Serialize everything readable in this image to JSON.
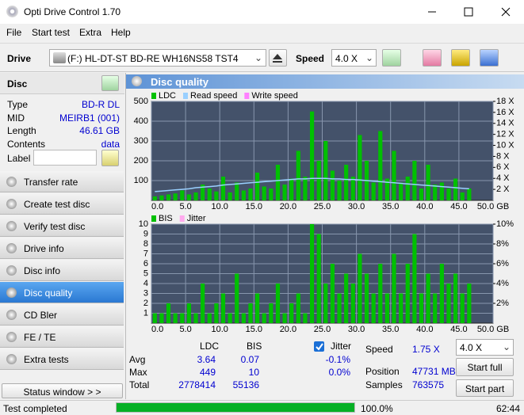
{
  "window": {
    "title": "Opti Drive Control 1.70"
  },
  "menu": [
    "File",
    "Start test",
    "Extra",
    "Help"
  ],
  "toolbar": {
    "drive_label": "Drive",
    "drive": "(F:)  HL-DT-ST BD-RE  WH16NS58 TST4",
    "speed_label": "Speed",
    "speed": "4.0 X"
  },
  "disc": {
    "title": "Disc",
    "rows": [
      [
        "Type",
        "BD-R DL"
      ],
      [
        "MID",
        "MEIRB1 (001)"
      ],
      [
        "Length",
        "46.61 GB"
      ],
      [
        "Contents",
        "data"
      ]
    ],
    "label": "Label"
  },
  "nav": [
    "Transfer rate",
    "Create test disc",
    "Verify test disc",
    "Drive info",
    "Disc info",
    "Disc quality",
    "CD Bler",
    "FE / TE",
    "Extra tests"
  ],
  "status_window": "Status window > >",
  "panel_title": "Disc quality",
  "chart_data": [
    {
      "type": "bar",
      "x": [
        0.5,
        1.5,
        2.5,
        3.5,
        4.5,
        5.5,
        6.5,
        7.5,
        8.5,
        9.5,
        10.5,
        11.5,
        12.5,
        13.5,
        14.5,
        15.5,
        16.5,
        17.5,
        18.5,
        19.5,
        20.5,
        21.5,
        22.5,
        23.5,
        24.5,
        25.5,
        26.5,
        27.5,
        28.5,
        29.5,
        30.5,
        31.5,
        32.5,
        33.5,
        34.5,
        35.5,
        36.5,
        37.5,
        38.5,
        39.5,
        40.5,
        41.5,
        42.5,
        43.5,
        44.5,
        45.5,
        46.5
      ],
      "series": [
        {
          "name": "LDC",
          "color": "#00c000",
          "values": [
            20,
            25,
            30,
            35,
            50,
            30,
            40,
            80,
            60,
            45,
            120,
            40,
            90,
            50,
            60,
            140,
            70,
            60,
            180,
            80,
            110,
            250,
            120,
            449,
            200,
            300,
            150,
            100,
            180,
            120,
            330,
            200,
            90,
            350,
            110,
            250,
            90,
            120,
            200,
            60,
            180,
            80,
            90,
            60,
            110,
            40,
            60
          ]
        },
        {
          "name": "Read speed",
          "color": "#9ad0ff",
          "axis": "y2",
          "values": [
            1.6,
            1.7,
            1.8,
            1.9,
            2.0,
            2.1,
            2.3,
            2.4,
            2.5,
            2.6,
            2.8,
            2.9,
            3.0,
            3.1,
            3.2,
            3.3,
            3.4,
            3.5,
            3.6,
            3.7,
            3.8,
            3.9,
            3.9,
            4.0,
            4.0,
            4.0,
            3.9,
            3.9,
            3.8,
            3.8,
            3.7,
            3.6,
            3.5,
            3.4,
            3.3,
            3.2,
            3.1,
            3.0,
            2.9,
            2.8,
            2.7,
            2.6,
            2.5,
            2.4,
            2.3,
            2.2,
            2.1
          ]
        },
        {
          "name": "Write speed",
          "color": "#ff80ff",
          "axis": "y2",
          "values": [
            null,
            null,
            null,
            null,
            null,
            null,
            null,
            null,
            null,
            null,
            null,
            null,
            null,
            null,
            null,
            null,
            null,
            null,
            null,
            null,
            null,
            null,
            null,
            null,
            null,
            null,
            null,
            null,
            null,
            null,
            null,
            null,
            null,
            null,
            null,
            null,
            null,
            null,
            null,
            null,
            null,
            null,
            null,
            null,
            null,
            null,
            null
          ]
        }
      ],
      "xlim": [
        0,
        50
      ],
      "xticks": [
        {
          "value": 0,
          "label": "0.0"
        },
        {
          "value": 5,
          "label": "5.0"
        },
        {
          "value": 10,
          "label": "10.0"
        },
        {
          "value": 15,
          "label": "15.0"
        },
        {
          "value": 20,
          "label": "20.0"
        },
        {
          "value": 25,
          "label": "25.0"
        },
        {
          "value": 30,
          "label": "30.0"
        },
        {
          "value": 35,
          "label": "35.0"
        },
        {
          "value": 40,
          "label": "40.0"
        },
        {
          "value": 45,
          "label": "45.0"
        },
        {
          "value": 50,
          "label": "50.0 GB"
        }
      ],
      "ylim": [
        0,
        500
      ],
      "yticks": [
        100,
        200,
        300,
        400,
        500
      ],
      "y2lim": [
        0,
        18
      ],
      "y2ticks": [
        {
          "value": 2,
          "label": "2 X"
        },
        {
          "value": 4,
          "label": "4 X"
        },
        {
          "value": 6,
          "label": "6 X"
        },
        {
          "value": 8,
          "label": "8 X"
        },
        {
          "value": 10,
          "label": "10 X"
        },
        {
          "value": 12,
          "label": "12 X"
        },
        {
          "value": 14,
          "label": "14 X"
        },
        {
          "value": 16,
          "label": "16 X"
        },
        {
          "value": 18,
          "label": "18 X"
        }
      ],
      "grid": true
    },
    {
      "type": "bar",
      "x": [
        0.5,
        1.5,
        2.5,
        3.5,
        4.5,
        5.5,
        6.5,
        7.5,
        8.5,
        9.5,
        10.5,
        11.5,
        12.5,
        13.5,
        14.5,
        15.5,
        16.5,
        17.5,
        18.5,
        19.5,
        20.5,
        21.5,
        22.5,
        23.5,
        24.5,
        25.5,
        26.5,
        27.5,
        28.5,
        29.5,
        30.5,
        31.5,
        32.5,
        33.5,
        34.5,
        35.5,
        36.5,
        37.5,
        38.5,
        39.5,
        40.5,
        41.5,
        42.5,
        43.5,
        44.5,
        45.5,
        46.5
      ],
      "series": [
        {
          "name": "BIS",
          "color": "#00c000",
          "values": [
            1,
            1,
            2,
            1,
            1,
            2,
            1,
            4,
            1,
            2,
            3,
            1,
            5,
            1,
            2,
            3,
            1,
            2,
            4,
            1,
            2,
            3,
            1,
            10,
            9,
            4,
            6,
            3,
            5,
            4,
            7,
            5,
            3,
            6,
            3,
            7,
            3,
            6,
            9,
            3,
            5,
            3,
            6,
            4,
            5,
            3,
            4
          ]
        },
        {
          "name": "Jitter",
          "color": "#ffaaee",
          "axis": "y2",
          "values": [
            null,
            null,
            null,
            null,
            null,
            null,
            null,
            null,
            null,
            null,
            null,
            null,
            null,
            null,
            null,
            null,
            null,
            null,
            null,
            null,
            null,
            null,
            null,
            null,
            null,
            null,
            null,
            null,
            null,
            null,
            null,
            null,
            null,
            null,
            null,
            null,
            null,
            null,
            null,
            null,
            null,
            null,
            null,
            null,
            null,
            null,
            null
          ]
        }
      ],
      "xlim": [
        0,
        50
      ],
      "xticks": [
        {
          "value": 0,
          "label": "0.0"
        },
        {
          "value": 5,
          "label": "5.0"
        },
        {
          "value": 10,
          "label": "10.0"
        },
        {
          "value": 15,
          "label": "15.0"
        },
        {
          "value": 20,
          "label": "20.0"
        },
        {
          "value": 25,
          "label": "25.0"
        },
        {
          "value": 30,
          "label": "30.0"
        },
        {
          "value": 35,
          "label": "35.0"
        },
        {
          "value": 40,
          "label": "40.0"
        },
        {
          "value": 45,
          "label": "45.0"
        },
        {
          "value": 50,
          "label": "50.0 GB"
        }
      ],
      "ylim": [
        0,
        10
      ],
      "yticks": [
        1,
        2,
        3,
        4,
        5,
        6,
        7,
        8,
        9,
        10
      ],
      "y2lim": [
        0,
        10
      ],
      "y2ticks": [
        {
          "value": 2,
          "label": "2%"
        },
        {
          "value": 4,
          "label": "4%"
        },
        {
          "value": 6,
          "label": "6%"
        },
        {
          "value": 8,
          "label": "8%"
        },
        {
          "value": 10,
          "label": "10%"
        }
      ],
      "grid": true
    }
  ],
  "stats": {
    "headers": [
      "LDC",
      "BIS"
    ],
    "labels": [
      "Avg",
      "Max",
      "Total"
    ],
    "ldc": [
      3.64,
      449,
      2778414
    ],
    "bis": [
      0.07,
      10,
      55136
    ],
    "jitter_label": "Jitter",
    "jitter": [
      "-0.1%",
      "0.0%"
    ],
    "speed_label": "Speed",
    "speed": "1.75 X",
    "position_label": "Position",
    "position": "47731 MB",
    "samples_label": "Samples",
    "samples": "763575",
    "speed_select": "4.0 X",
    "start_full": "Start full",
    "start_part": "Start part"
  },
  "statusbar": {
    "text": "Test completed",
    "progress": {
      "value": 100,
      "label": "100.0%"
    },
    "time": "62:44"
  }
}
